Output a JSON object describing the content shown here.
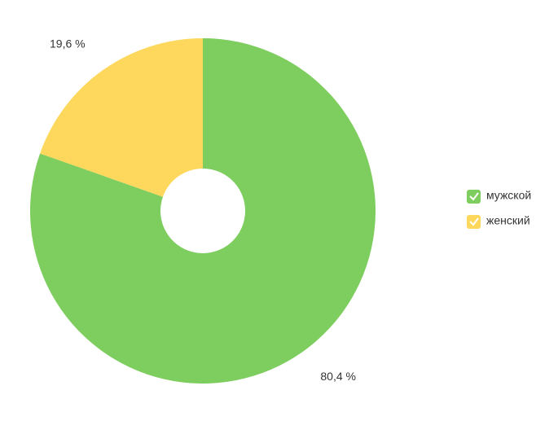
{
  "chart_data": {
    "type": "pie",
    "categories": [
      "мужской",
      "женский"
    ],
    "values": [
      80.4,
      19.6
    ],
    "value_labels": [
      "80,4 %",
      "19,6 %"
    ],
    "colors": [
      "#7ecd5f",
      "#fdd85d"
    ],
    "legend": "right"
  }
}
